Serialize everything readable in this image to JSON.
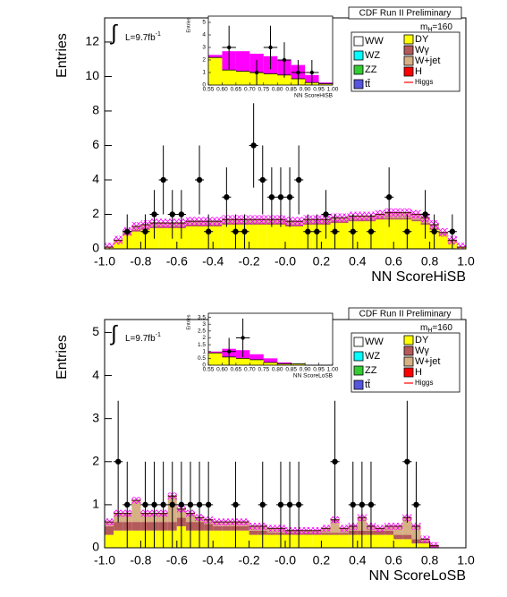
{
  "chart_data": [
    {
      "type": "stacked-histogram",
      "header": "CDF Run II Preliminary",
      "mass_label": {
        "base": "m",
        "sub": "H",
        "rest": "=160"
      },
      "lumi": {
        "symbol": "∫",
        "base": "L=9.7fb",
        "sup": "-1"
      },
      "y_label": "Entries",
      "x_label": "NN ScoreHiSB",
      "xlim": [
        -1,
        1
      ],
      "ylim": [
        0,
        13.4
      ],
      "xticks": [
        {
          "value": -1,
          "label": "-1.0"
        },
        -0.8,
        -0.6,
        -0.4,
        -0.2,
        {
          "value": 0,
          "label": "-0.0"
        },
        0.2,
        0.4,
        0.6,
        0.8,
        {
          "value": 1,
          "label": "1.0"
        }
      ],
      "yticks": [
        0,
        2,
        4,
        6,
        8,
        10,
        12
      ],
      "bins": [
        -1,
        -0.95,
        -0.9,
        -0.85,
        -0.8,
        -0.75,
        -0.7,
        -0.65,
        -0.6,
        -0.55,
        -0.5,
        -0.45,
        -0.4,
        -0.35,
        -0.3,
        -0.25,
        -0.2,
        -0.15,
        -0.1,
        -0.05,
        0,
        0.05,
        0.1,
        0.15,
        0.2,
        0.25,
        0.3,
        0.35,
        0.4,
        0.45,
        0.5,
        0.55,
        0.6,
        0.65,
        0.7,
        0.75,
        0.8,
        0.85,
        0.9,
        0.95,
        1
      ],
      "series": [
        {
          "name": "DY",
          "color": "#ffff00",
          "values": [
            0.1,
            0.4,
            0.8,
            1.0,
            1.1,
            1.2,
            1.2,
            1.2,
            1.2,
            1.3,
            1.3,
            1.3,
            1.3,
            1.4,
            1.4,
            1.4,
            1.4,
            1.4,
            1.4,
            1.4,
            1.3,
            1.3,
            1.4,
            1.4,
            1.4,
            1.5,
            1.5,
            1.6,
            1.6,
            1.6,
            1.7,
            1.7,
            1.7,
            1.7,
            1.6,
            1.4,
            1.1,
            0.8,
            0.4,
            0.1
          ]
        },
        {
          "name": "Wγ",
          "color": "#b45a5a",
          "values": [
            0,
            0.05,
            0.1,
            0.1,
            0.1,
            0.1,
            0.1,
            0.1,
            0.1,
            0.1,
            0.1,
            0.1,
            0.1,
            0.1,
            0.1,
            0.1,
            0.1,
            0.1,
            0.1,
            0.1,
            0.1,
            0.1,
            0.1,
            0.1,
            0.1,
            0.1,
            0.1,
            0.1,
            0.1,
            0.1,
            0.1,
            0.1,
            0.1,
            0.1,
            0.1,
            0.1,
            0.1,
            0.05,
            0.05,
            0
          ]
        },
        {
          "name": "W+jet",
          "color": "#d7b084",
          "values": [
            0,
            0.05,
            0.1,
            0.2,
            0.2,
            0.2,
            0.2,
            0.2,
            0.2,
            0.2,
            0.2,
            0.2,
            0.2,
            0.2,
            0.2,
            0.2,
            0.2,
            0.2,
            0.2,
            0.2,
            0.2,
            0.2,
            0.2,
            0.2,
            0.2,
            0.2,
            0.2,
            0.2,
            0.2,
            0.2,
            0.2,
            0.3,
            0.3,
            0.3,
            0.3,
            0.3,
            0.2,
            0.1,
            0.05,
            0
          ]
        }
      ],
      "other_entries": [
        {
          "name": "WW",
          "color": "#ffffff",
          "style": "box"
        },
        {
          "name": "WZ",
          "color": "#00ffff",
          "style": "box"
        },
        {
          "name": "ZZ",
          "color": "#33cc33",
          "style": "box"
        },
        {
          "name": "tt̄",
          "color": "#5555dd",
          "style": "box"
        },
        {
          "name": "H",
          "color": "#ff0000",
          "style": "box"
        },
        {
          "name": "Higgs",
          "color": "#ff0000",
          "style": "line"
        }
      ],
      "band": {
        "color": "#ff00ff",
        "halfwidth": 0.25
      },
      "observed": [
        null,
        null,
        1,
        null,
        1,
        2,
        4,
        2,
        2,
        null,
        4,
        1,
        null,
        3,
        1,
        1,
        6,
        4,
        3,
        3,
        3,
        4,
        1,
        1,
        2,
        1,
        null,
        1,
        null,
        1,
        null,
        3,
        null,
        1,
        null,
        2,
        1,
        null,
        1,
        null
      ],
      "inset": {
        "type": "histogram",
        "y_label": "Entries",
        "x_label": "NN ScoreHiSB",
        "xlim": [
          0.55,
          1
        ],
        "ylim": [
          0,
          5.5
        ],
        "xticks": [
          0.55,
          {
            "value": 0.6,
            "label": "0.60"
          },
          0.65,
          {
            "value": 0.7,
            "label": "0.70"
          },
          0.75,
          {
            "value": 0.8,
            "label": "0.80"
          },
          0.85,
          {
            "value": 0.9,
            "label": "0.90"
          },
          0.95,
          {
            "value": 1,
            "label": "1.00"
          }
        ],
        "yticks": [
          0,
          1,
          2,
          3,
          4,
          5
        ],
        "bins": [
          0.55,
          0.6,
          0.65,
          0.7,
          0.75,
          0.8,
          0.85,
          0.9,
          0.95,
          1
        ],
        "color": "#ffff00",
        "values": [
          2.2,
          1.2,
          1.1,
          1.0,
          0.9,
          0.8,
          0.5,
          0.2,
          0.1
        ],
        "band_color": "#ff00ff",
        "band_top": [
          2.4,
          2.7,
          2.7,
          2.5,
          2.3,
          2.0,
          1.6,
          0.8,
          0.2
        ],
        "observed": [
          null,
          3,
          null,
          1,
          3,
          2,
          1,
          1,
          null
        ]
      }
    },
    {
      "type": "stacked-histogram",
      "header": "CDF Run II Preliminary",
      "mass_label": {
        "base": "m",
        "sub": "H",
        "rest": "=160"
      },
      "lumi": {
        "symbol": "∫",
        "base": "L=9.7fb",
        "sup": "-1"
      },
      "y_label": "Entries",
      "x_label": "NN ScoreLoSB",
      "xlim": [
        -1,
        1
      ],
      "ylim": [
        0,
        5.3
      ],
      "xticks": [
        {
          "value": -1,
          "label": "-1.0"
        },
        -0.8,
        -0.6,
        -0.4,
        -0.2,
        {
          "value": 0,
          "label": "-0.0"
        },
        0.2,
        0.4,
        0.6,
        0.8,
        {
          "value": 1,
          "label": "1.0"
        }
      ],
      "yticks": [
        0,
        1,
        2,
        3,
        4,
        5
      ],
      "bins": [
        -1,
        -0.95,
        -0.9,
        -0.85,
        -0.8,
        -0.75,
        -0.7,
        -0.65,
        -0.6,
        -0.55,
        -0.5,
        -0.45,
        -0.4,
        -0.35,
        -0.3,
        -0.25,
        -0.2,
        -0.15,
        -0.1,
        -0.05,
        0,
        0.05,
        0.1,
        0.15,
        0.2,
        0.25,
        0.3,
        0.35,
        0.4,
        0.45,
        0.5,
        0.55,
        0.6,
        0.65,
        0.7,
        0.75,
        0.8,
        0.85,
        0.9,
        0.95,
        1
      ],
      "series": [
        {
          "name": "DY",
          "color": "#ffff00",
          "values": [
            0.3,
            0.4,
            0.4,
            0.4,
            0.4,
            0.4,
            0.4,
            0.4,
            0.5,
            0.4,
            0.4,
            0.4,
            0.4,
            0.4,
            0.4,
            0.4,
            0.3,
            0.3,
            0.3,
            0.3,
            0.3,
            0.3,
            0.3,
            0.3,
            0.3,
            0.3,
            0.3,
            0.3,
            0.3,
            0.3,
            0.3,
            0.3,
            0.2,
            0.2,
            0.1,
            0.1,
            0,
            0,
            0,
            0
          ]
        },
        {
          "name": "Wγ",
          "color": "#b45a5a",
          "values": [
            0.2,
            0.2,
            0.2,
            0.2,
            0.2,
            0.2,
            0.2,
            0.2,
            0.2,
            0.2,
            0.2,
            0.15,
            0.1,
            0.1,
            0.1,
            0.1,
            0.1,
            0.1,
            0.05,
            0.05,
            0.05,
            0.05,
            0.05,
            0.05,
            0.05,
            0.05,
            0.05,
            0.1,
            0.1,
            0.1,
            0.1,
            0.1,
            0.1,
            0.1,
            0.1,
            0.05,
            0.05,
            0,
            0,
            0
          ]
        },
        {
          "name": "W+jet",
          "color": "#d7b084",
          "values": [
            0.1,
            0.2,
            0.2,
            0.5,
            0.2,
            0.2,
            0.2,
            0.6,
            0.2,
            0.2,
            0.1,
            0.1,
            0.1,
            0.1,
            0.1,
            0.1,
            0.1,
            0.1,
            0.1,
            0.1,
            0.05,
            0.05,
            0.05,
            0.05,
            0.1,
            0.3,
            0.1,
            0.1,
            0.3,
            0.1,
            0.05,
            0.1,
            0.2,
            0.4,
            0.3,
            0.05,
            0,
            0,
            0,
            0
          ]
        }
      ],
      "other_entries": [
        {
          "name": "WW",
          "color": "#ffffff",
          "style": "box"
        },
        {
          "name": "WZ",
          "color": "#00ffff",
          "style": "box"
        },
        {
          "name": "ZZ",
          "color": "#33cc33",
          "style": "box"
        },
        {
          "name": "tt̄",
          "color": "#5555dd",
          "style": "box"
        },
        {
          "name": "H",
          "color": "#ff0000",
          "style": "box"
        },
        {
          "name": "Higgs",
          "color": "#ff0000",
          "style": "line"
        }
      ],
      "band": {
        "color": "#ff00ff",
        "halfwidth": 0.08
      },
      "observed": [
        null,
        2,
        1,
        null,
        1,
        1,
        1,
        1,
        1,
        1,
        1,
        1,
        null,
        null,
        1,
        null,
        null,
        1,
        null,
        1,
        1,
        1,
        null,
        null,
        null,
        2,
        null,
        1,
        1,
        1,
        null,
        null,
        null,
        2,
        1,
        null,
        null,
        null,
        null,
        null
      ],
      "inset": {
        "type": "histogram",
        "y_label": "Entries",
        "x_label": "NN ScoreLoSB",
        "xlim": [
          0.55,
          1
        ],
        "ylim": [
          0,
          3.8
        ],
        "xticks": [
          0.55,
          {
            "value": 0.6,
            "label": "0.60"
          },
          0.65,
          {
            "value": 0.7,
            "label": "0.70"
          },
          0.75,
          {
            "value": 0.8,
            "label": "0.80"
          },
          0.85,
          {
            "value": 0.9,
            "label": "0.90"
          },
          0.95,
          {
            "value": 1,
            "label": "1.00"
          }
        ],
        "yticks": [
          0,
          0.5,
          1,
          1.5,
          2,
          2.5,
          3,
          3.5
        ],
        "bins": [
          0.55,
          0.6,
          0.65,
          0.7,
          0.75,
          0.8,
          0.85,
          0.9,
          0.95,
          1
        ],
        "color": "#ffff00",
        "values": [
          0.9,
          0.6,
          0.5,
          0.4,
          0.2,
          0.1,
          0.1,
          0,
          0
        ],
        "band_color": "#ff00ff",
        "band_top": [
          1.0,
          1.2,
          1.1,
          0.8,
          0.5,
          0.2,
          0.1,
          0,
          0
        ],
        "observed": [
          null,
          1,
          2,
          null,
          null,
          null,
          null,
          null,
          null
        ]
      }
    }
  ]
}
